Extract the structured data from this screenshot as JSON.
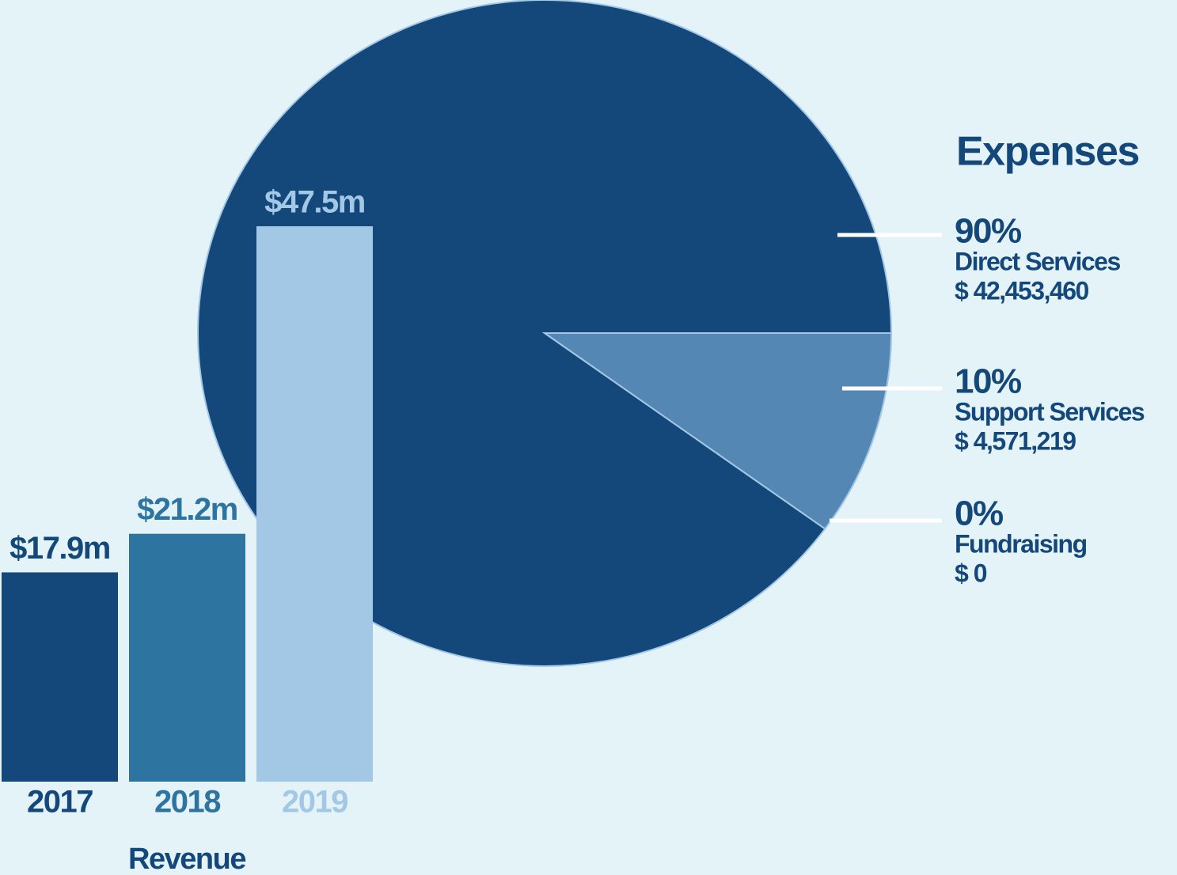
{
  "chart_data": [
    {
      "type": "pie",
      "title": "Expenses",
      "categories": [
        "Direct Services",
        "Support Services",
        "Fundraising"
      ],
      "values": [
        90,
        10,
        0
      ],
      "value_labels": [
        "90%",
        "10%",
        "0%"
      ],
      "amount_labels": [
        "$ 42,453,460",
        "$ 4,571,219",
        "$ 0"
      ],
      "colors": [
        "#14487a",
        "#5587b5",
        "#a3c8e6"
      ]
    },
    {
      "type": "bar",
      "title": "Revenue",
      "categories": [
        "2017",
        "2018",
        "2019"
      ],
      "values": [
        17.9,
        21.2,
        47.5
      ],
      "value_labels": [
        "$17.9m",
        "$21.2m",
        "$47.5m"
      ],
      "colors": [
        "#14487a",
        "#2d74a0",
        "#a3c8e6"
      ]
    }
  ]
}
